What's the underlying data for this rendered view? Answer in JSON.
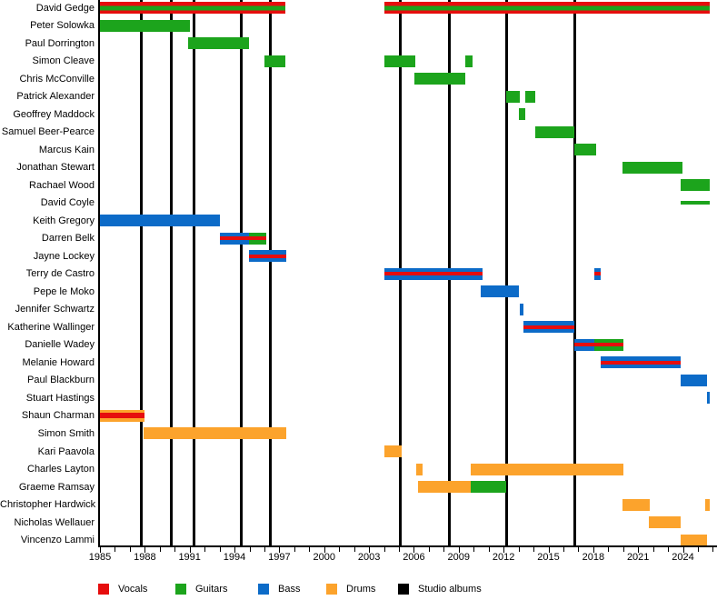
{
  "chart_data": {
    "type": "bar",
    "subtype": "horizontal-gantt-band-member-timeline",
    "title": "",
    "grid": false,
    "legend_position": "bottom",
    "x_axis": {
      "start": 1985,
      "end": 2026,
      "major_ticks": [
        1985,
        1988,
        1991,
        1994,
        1997,
        2000,
        2003,
        2006,
        2009,
        2012,
        2015,
        2018,
        2021,
        2024
      ],
      "minor_tick_interval": 1
    },
    "role_colors": {
      "vocals": "#E60D0D",
      "guitars": "#1CA41C",
      "bass": "#0C6BC8",
      "drums": "#FCA32C",
      "albums": "#000000"
    },
    "legend": [
      {
        "label": "Vocals",
        "color": "#E60D0D"
      },
      {
        "label": "Guitars",
        "color": "#1CA41C"
      },
      {
        "label": "Bass",
        "color": "#0C6BC8"
      },
      {
        "label": "Drums",
        "color": "#FCA32C"
      },
      {
        "label": "Studio albums",
        "color": "#000000"
      }
    ],
    "album_lines_years": [
      1987.75,
      1989.75,
      1991.3,
      1994.45,
      1996.4,
      2005.1,
      2008.4,
      2012.2,
      2016.75
    ],
    "members": [
      {
        "name": "David Gedge",
        "segments": [
          {
            "start": 1985.0,
            "end": 1997.4,
            "role": "vocals",
            "stripe_role": "guitars"
          },
          {
            "start": 2004.05,
            "end": 2025.8,
            "role": "vocals",
            "stripe_role": "guitars"
          }
        ]
      },
      {
        "name": "Peter Solowka",
        "segments": [
          {
            "start": 1985.0,
            "end": 1991.0,
            "role": "guitars"
          }
        ]
      },
      {
        "name": "Paul Dorrington",
        "segments": [
          {
            "start": 1990.9,
            "end": 1995.0,
            "role": "guitars"
          }
        ]
      },
      {
        "name": "Simon Cleave",
        "segments": [
          {
            "start": 1996.0,
            "end": 1997.4,
            "role": "guitars"
          },
          {
            "start": 2004.05,
            "end": 2006.1,
            "role": "guitars"
          },
          {
            "start": 2009.45,
            "end": 2009.9,
            "role": "guitars"
          }
        ]
      },
      {
        "name": "Chris McConville",
        "segments": [
          {
            "start": 2006.05,
            "end": 2009.45,
            "role": "guitars"
          }
        ]
      },
      {
        "name": "Patrick Alexander",
        "segments": [
          {
            "start": 2012.2,
            "end": 2013.1,
            "role": "guitars"
          },
          {
            "start": 2013.45,
            "end": 2014.1,
            "role": "guitars"
          }
        ]
      },
      {
        "name": "Geoffrey Maddock",
        "segments": [
          {
            "start": 2013.05,
            "end": 2013.45,
            "role": "guitars"
          }
        ]
      },
      {
        "name": "Samuel Beer-Pearce",
        "segments": [
          {
            "start": 2014.1,
            "end": 2016.75,
            "role": "guitars"
          }
        ]
      },
      {
        "name": "Marcus Kain",
        "segments": [
          {
            "start": 2016.75,
            "end": 2018.2,
            "role": "guitars"
          }
        ]
      },
      {
        "name": "Jonathan Stewart",
        "segments": [
          {
            "start": 2019.95,
            "end": 2023.95,
            "role": "guitars"
          }
        ]
      },
      {
        "name": "Rachael Wood",
        "segments": [
          {
            "start": 2023.85,
            "end": 2025.8,
            "role": "guitars"
          }
        ]
      },
      {
        "name": "David Coyle",
        "segments": [
          {
            "start": 2023.85,
            "end": 2025.8,
            "role": "guitars",
            "thin": true
          }
        ]
      },
      {
        "name": "Keith Gregory",
        "segments": [
          {
            "start": 1985.0,
            "end": 1993.0,
            "role": "bass"
          }
        ]
      },
      {
        "name": "Darren Belk",
        "segments": [
          {
            "start": 1993.0,
            "end": 1994.95,
            "role": "bass",
            "stripe_role": "vocals"
          },
          {
            "start": 1994.95,
            "end": 1996.1,
            "role": "guitars",
            "stripe_role": "vocals"
          }
        ]
      },
      {
        "name": "Jayne Lockey",
        "segments": [
          {
            "start": 1994.95,
            "end": 1997.45,
            "role": "bass",
            "stripe_role": "vocals"
          }
        ]
      },
      {
        "name": "Terry de Castro",
        "segments": [
          {
            "start": 2004.0,
            "end": 2010.6,
            "role": "bass",
            "stripe_role": "vocals"
          },
          {
            "start": 2018.05,
            "end": 2018.5,
            "role": "bass",
            "stripe_role": "vocals"
          }
        ]
      },
      {
        "name": "Pepe le Moko",
        "segments": [
          {
            "start": 2010.5,
            "end": 2013.0,
            "role": "bass"
          }
        ]
      },
      {
        "name": "Jennifer Schwartz",
        "segments": [
          {
            "start": 2013.1,
            "end": 2013.3,
            "role": "bass"
          }
        ]
      },
      {
        "name": "Katherine Wallinger",
        "segments": [
          {
            "start": 2013.3,
            "end": 2016.75,
            "role": "bass",
            "stripe_role": "vocals"
          }
        ]
      },
      {
        "name": "Danielle Wadey",
        "segments": [
          {
            "start": 2016.75,
            "end": 2018.1,
            "role": "bass",
            "stripe_role": "vocals"
          },
          {
            "start": 2018.1,
            "end": 2020.0,
            "role": "guitars",
            "stripe_role": "vocals"
          }
        ]
      },
      {
        "name": "Melanie Howard",
        "segments": [
          {
            "start": 2018.5,
            "end": 2023.85,
            "role": "bass",
            "stripe_role": "vocals"
          }
        ]
      },
      {
        "name": "Paul Blackburn",
        "segments": [
          {
            "start": 2023.85,
            "end": 2025.6,
            "role": "bass"
          }
        ]
      },
      {
        "name": "Stuart Hastings",
        "segments": [
          {
            "start": 2025.6,
            "end": 2025.8,
            "role": "bass"
          }
        ]
      },
      {
        "name": "Shaun Charman",
        "segments": [
          {
            "start": 1985.0,
            "end": 1988.0,
            "role": "drums",
            "stripe_role": "vocals"
          }
        ]
      },
      {
        "name": "Simon Smith",
        "segments": [
          {
            "start": 1987.9,
            "end": 1997.45,
            "role": "drums"
          }
        ]
      },
      {
        "name": "Kari Paavola",
        "segments": [
          {
            "start": 2004.0,
            "end": 2005.2,
            "role": "drums"
          }
        ]
      },
      {
        "name": "Charles Layton",
        "segments": [
          {
            "start": 2006.15,
            "end": 2006.6,
            "role": "drums"
          },
          {
            "start": 2009.8,
            "end": 2020.0,
            "role": "drums"
          }
        ]
      },
      {
        "name": "Graeme Ramsay",
        "segments": [
          {
            "start": 2006.3,
            "end": 2009.8,
            "role": "drums"
          },
          {
            "start": 2009.8,
            "end": 2012.15,
            "role": "guitars"
          }
        ]
      },
      {
        "name": "Christopher Hardwick",
        "segments": [
          {
            "start": 2019.95,
            "end": 2021.8,
            "role": "drums"
          },
          {
            "start": 2025.5,
            "end": 2025.8,
            "role": "drums"
          }
        ]
      },
      {
        "name": "Nicholas Wellauer",
        "segments": [
          {
            "start": 2021.7,
            "end": 2023.85,
            "role": "drums"
          }
        ]
      },
      {
        "name": "Vincenzo Lammi",
        "segments": [
          {
            "start": 2023.85,
            "end": 2025.6,
            "role": "drums"
          }
        ]
      }
    ]
  }
}
